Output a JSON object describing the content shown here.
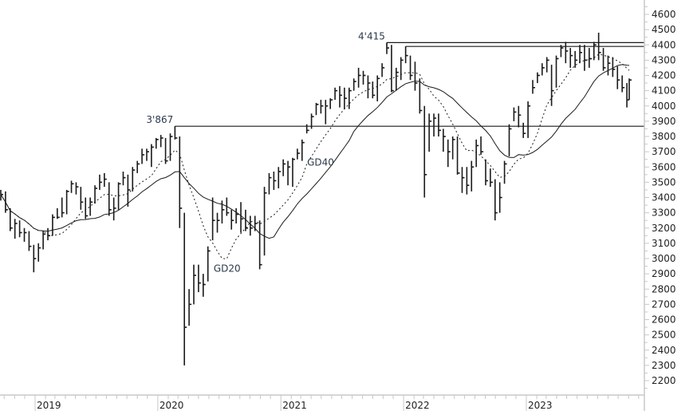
{
  "chart_data": {
    "type": "ohlc-bar",
    "title": "",
    "xlabel": "",
    "ylabel": "",
    "ylim": [
      2150,
      4650
    ],
    "y_ticks": [
      2200,
      2300,
      2400,
      2500,
      2600,
      2700,
      2800,
      2900,
      3000,
      3100,
      3200,
      3300,
      3400,
      3500,
      3600,
      3700,
      3800,
      3900,
      4000,
      4100,
      4200,
      4300,
      4400,
      4500,
      4600
    ],
    "x_ticks": [
      {
        "label": "2019",
        "date": "2019-01-01"
      },
      {
        "label": "2020",
        "date": "2020-01-01"
      },
      {
        "label": "2021",
        "date": "2021-01-01"
      },
      {
        "label": "2022",
        "date": "2022-01-01"
      },
      {
        "label": "2023",
        "date": "2023-01-01"
      }
    ],
    "y_axis_position": "right",
    "grid": false,
    "bar_fields": [
      "date",
      "high",
      "low",
      "close"
    ],
    "bars": [
      [
        "2018-09-21",
        3450,
        3380,
        3420
      ],
      [
        "2018-10-05",
        3440,
        3300,
        3320
      ],
      [
        "2018-10-19",
        3330,
        3180,
        3200
      ],
      [
        "2018-11-02",
        3260,
        3130,
        3230
      ],
      [
        "2018-11-16",
        3250,
        3140,
        3170
      ],
      [
        "2018-11-30",
        3200,
        3110,
        3170
      ],
      [
        "2018-12-14",
        3180,
        3050,
        3080
      ],
      [
        "2018-12-28",
        3090,
        2910,
        3000
      ],
      [
        "2019-01-11",
        3100,
        2980,
        3070
      ],
      [
        "2019-01-25",
        3180,
        3060,
        3160
      ],
      [
        "2019-02-08",
        3200,
        3120,
        3150
      ],
      [
        "2019-02-22",
        3290,
        3150,
        3270
      ],
      [
        "2019-03-08",
        3330,
        3260,
        3270
      ],
      [
        "2019-03-22",
        3400,
        3270,
        3300
      ],
      [
        "2019-04-05",
        3450,
        3290,
        3440
      ],
      [
        "2019-04-19",
        3510,
        3430,
        3490
      ],
      [
        "2019-05-03",
        3500,
        3420,
        3470
      ],
      [
        "2019-05-17",
        3470,
        3320,
        3370
      ],
      [
        "2019-05-31",
        3400,
        3260,
        3280
      ],
      [
        "2019-06-14",
        3400,
        3280,
        3370
      ],
      [
        "2019-06-28",
        3480,
        3360,
        3460
      ],
      [
        "2019-07-12",
        3550,
        3450,
        3500
      ],
      [
        "2019-07-26",
        3560,
        3470,
        3520
      ],
      [
        "2019-08-09",
        3500,
        3280,
        3320
      ],
      [
        "2019-08-23",
        3400,
        3250,
        3330
      ],
      [
        "2019-09-06",
        3500,
        3320,
        3490
      ],
      [
        "2019-09-20",
        3570,
        3480,
        3530
      ],
      [
        "2019-10-04",
        3550,
        3340,
        3450
      ],
      [
        "2019-10-18",
        3600,
        3440,
        3580
      ],
      [
        "2019-11-01",
        3640,
        3560,
        3620
      ],
      [
        "2019-11-15",
        3720,
        3620,
        3680
      ],
      [
        "2019-11-29",
        3720,
        3640,
        3700
      ],
      [
        "2019-12-13",
        3750,
        3600,
        3730
      ],
      [
        "2019-12-27",
        3790,
        3720,
        3780
      ],
      [
        "2020-01-10",
        3810,
        3730,
        3790
      ],
      [
        "2020-01-24",
        3790,
        3620,
        3640
      ],
      [
        "2020-02-07",
        3820,
        3640,
        3800
      ],
      [
        "2020-02-21",
        3867,
        3780,
        3790
      ],
      [
        "2020-03-06",
        3800,
        3200,
        3330
      ],
      [
        "2020-03-20",
        3300,
        2300,
        2550
      ],
      [
        "2020-04-03",
        2800,
        2560,
        2700
      ],
      [
        "2020-04-17",
        2960,
        2700,
        2890
      ],
      [
        "2020-05-01",
        2960,
        2780,
        2840
      ],
      [
        "2020-05-15",
        2900,
        2750,
        2830
      ],
      [
        "2020-05-29",
        3080,
        2850,
        3050
      ],
      [
        "2020-06-12",
        3400,
        3120,
        3250
      ],
      [
        "2020-06-26",
        3300,
        3170,
        3250
      ],
      [
        "2020-07-10",
        3380,
        3230,
        3320
      ],
      [
        "2020-07-24",
        3400,
        3280,
        3300
      ],
      [
        "2020-08-07",
        3320,
        3190,
        3250
      ],
      [
        "2020-08-21",
        3330,
        3230,
        3290
      ],
      [
        "2020-09-04",
        3370,
        3170,
        3260
      ],
      [
        "2020-09-18",
        3320,
        3180,
        3200
      ],
      [
        "2020-10-02",
        3280,
        3150,
        3200
      ],
      [
        "2020-10-16",
        3280,
        3180,
        3230
      ],
      [
        "2020-10-30",
        3250,
        2930,
        2960
      ],
      [
        "2020-11-13",
        3470,
        3020,
        3430
      ],
      [
        "2020-11-27",
        3560,
        3420,
        3530
      ],
      [
        "2020-12-11",
        3570,
        3450,
        3510
      ],
      [
        "2020-12-25",
        3600,
        3460,
        3570
      ],
      [
        "2021-01-08",
        3650,
        3540,
        3620
      ],
      [
        "2021-01-22",
        3640,
        3480,
        3600
      ],
      [
        "2021-02-05",
        3660,
        3470,
        3650
      ],
      [
        "2021-02-19",
        3720,
        3650,
        3690
      ],
      [
        "2021-03-05",
        3780,
        3640,
        3760
      ],
      [
        "2021-03-19",
        3880,
        3820,
        3840
      ],
      [
        "2021-04-02",
        3950,
        3850,
        3930
      ],
      [
        "2021-04-16",
        4020,
        3940,
        4010
      ],
      [
        "2021-04-30",
        4040,
        3950,
        4000
      ],
      [
        "2021-05-14",
        4040,
        3880,
        4000
      ],
      [
        "2021-05-28",
        4050,
        3980,
        4040
      ],
      [
        "2021-06-11",
        4120,
        4040,
        4100
      ],
      [
        "2021-06-25",
        4130,
        3990,
        4070
      ],
      [
        "2021-07-09",
        4120,
        3980,
        4050
      ],
      [
        "2021-07-23",
        4120,
        3980,
        4100
      ],
      [
        "2021-08-06",
        4180,
        4100,
        4160
      ],
      [
        "2021-08-20",
        4250,
        4120,
        4200
      ],
      [
        "2021-09-03",
        4230,
        4140,
        4200
      ],
      [
        "2021-09-17",
        4200,
        4050,
        4150
      ],
      [
        "2021-10-01",
        4160,
        4050,
        4070
      ],
      [
        "2021-10-15",
        4200,
        4030,
        4180
      ],
      [
        "2021-10-29",
        4280,
        4190,
        4250
      ],
      [
        "2021-11-12",
        4415,
        4340,
        4380
      ],
      [
        "2021-11-26",
        4400,
        4090,
        4100
      ],
      [
        "2021-12-10",
        4250,
        4100,
        4220
      ],
      [
        "2021-12-24",
        4320,
        4170,
        4300
      ],
      [
        "2022-01-07",
        4390,
        4280,
        4330
      ],
      [
        "2022-01-21",
        4330,
        4170,
        4200
      ],
      [
        "2022-02-04",
        4290,
        4100,
        4150
      ],
      [
        "2022-02-18",
        4180,
        3950,
        3970
      ],
      [
        "2022-03-04",
        4000,
        3400,
        3550
      ],
      [
        "2022-03-18",
        3950,
        3700,
        3900
      ],
      [
        "2022-04-01",
        3950,
        3800,
        3920
      ],
      [
        "2022-04-15",
        3950,
        3800,
        3840
      ],
      [
        "2022-04-29",
        3850,
        3700,
        3800
      ],
      [
        "2022-05-13",
        3780,
        3600,
        3700
      ],
      [
        "2022-05-27",
        3800,
        3650,
        3780
      ],
      [
        "2022-06-10",
        3800,
        3550,
        3560
      ],
      [
        "2022-06-24",
        3600,
        3430,
        3530
      ],
      [
        "2022-07-08",
        3600,
        3420,
        3480
      ],
      [
        "2022-07-22",
        3640,
        3440,
        3600
      ],
      [
        "2022-08-05",
        3780,
        3600,
        3740
      ],
      [
        "2022-08-19",
        3800,
        3680,
        3700
      ],
      [
        "2022-09-02",
        3650,
        3480,
        3510
      ],
      [
        "2022-09-16",
        3590,
        3470,
        3500
      ],
      [
        "2022-09-30",
        3520,
        3250,
        3300
      ],
      [
        "2022-10-14",
        3500,
        3300,
        3400
      ],
      [
        "2022-10-28",
        3640,
        3490,
        3620
      ],
      [
        "2022-11-11",
        3880,
        3670,
        3850
      ],
      [
        "2022-11-25",
        3990,
        3900,
        3960
      ],
      [
        "2022-12-09",
        4000,
        3860,
        3940
      ],
      [
        "2022-12-23",
        3890,
        3790,
        3820
      ],
      [
        "2023-01-06",
        4030,
        3790,
        4000
      ],
      [
        "2023-01-20",
        4170,
        4080,
        4120
      ],
      [
        "2023-02-03",
        4220,
        4150,
        4200
      ],
      [
        "2023-02-17",
        4280,
        4200,
        4250
      ],
      [
        "2023-03-03",
        4320,
        4220,
        4300
      ],
      [
        "2023-03-17",
        4270,
        4000,
        4100
      ],
      [
        "2023-03-31",
        4330,
        4120,
        4310
      ],
      [
        "2023-04-14",
        4400,
        4320,
        4380
      ],
      [
        "2023-04-28",
        4420,
        4280,
        4360
      ],
      [
        "2023-05-12",
        4380,
        4250,
        4330
      ],
      [
        "2023-05-26",
        4360,
        4250,
        4300
      ],
      [
        "2023-06-09",
        4400,
        4280,
        4350
      ],
      [
        "2023-06-23",
        4400,
        4230,
        4300
      ],
      [
        "2023-07-07",
        4380,
        4250,
        4310
      ],
      [
        "2023-07-21",
        4420,
        4300,
        4400
      ],
      [
        "2023-08-04",
        4480,
        4300,
        4350
      ],
      [
        "2023-08-18",
        4380,
        4230,
        4250
      ],
      [
        "2023-09-01",
        4330,
        4200,
        4280
      ],
      [
        "2023-09-15",
        4320,
        4190,
        4240
      ],
      [
        "2023-09-29",
        4260,
        4110,
        4170
      ],
      [
        "2023-10-13",
        4200,
        4090,
        4120
      ],
      [
        "2023-10-27",
        4150,
        3990,
        4040
      ],
      [
        "2023-11-03",
        4180,
        4040,
        4170
      ]
    ],
    "moving_averages": [
      {
        "name": "GD20",
        "style": "dotted",
        "label_date": "2020-06-15",
        "label_value": 2915
      },
      {
        "name": "GD40",
        "style": "solid",
        "label_date": "2021-03-20",
        "label_value": 3610
      }
    ],
    "levels": [
      {
        "value": 3867,
        "from": "2020-02-21",
        "label": "3'867"
      },
      {
        "value": 4415,
        "from": "2021-11-12",
        "label": "4'415"
      },
      {
        "value": 4390,
        "from": "2022-01-07",
        "label": ""
      }
    ],
    "colors": {
      "bars": "#1a1a1a",
      "lines": "#1a1a1a",
      "labels": "#2b3a4a",
      "axis": "#c8c8c8"
    }
  }
}
